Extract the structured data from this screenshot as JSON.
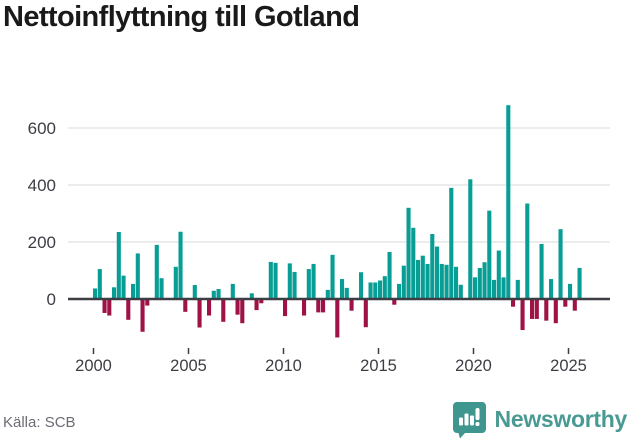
{
  "title": "Nettoinflyttning till Gotland",
  "source": "Källa: SCB",
  "brand": {
    "name": "Newsworthy",
    "icon": "newsworthy-bar-chart-bubble-icon",
    "color": "#4a9a94"
  },
  "chart_data": {
    "type": "bar",
    "title": "Nettoinflyttning till Gotland",
    "frequency": "quarterly",
    "x_start": "2000 Q1",
    "x_end": "2025 Q3",
    "x_tick_labels": [
      "2000",
      "2005",
      "2010",
      "2015",
      "2020",
      "2025"
    ],
    "y_tick_labels": [
      "600",
      "400",
      "200",
      "0"
    ],
    "y_ticks": [
      600,
      400,
      200,
      0
    ],
    "ylim": [
      -150,
      700
    ],
    "grid": true,
    "legend": false,
    "values_by_year": {
      "2000": [
        37,
        105,
        -49,
        -58
      ],
      "2001": [
        41,
        235,
        82,
        -73
      ],
      "2002": [
        53,
        160,
        -115,
        -23
      ],
      "2003": [
        0,
        190,
        73,
        0
      ],
      "2004": [
        0,
        113,
        236,
        -45
      ],
      "2005": [
        0,
        49,
        -100,
        0
      ],
      "2006": [
        -58,
        29,
        35,
        -80
      ],
      "2007": [
        0,
        53,
        -55,
        -85
      ],
      "2008": [
        0,
        20,
        -39,
        -15
      ],
      "2009": [
        0,
        130,
        127,
        0
      ],
      "2010": [
        -60,
        125,
        95,
        0
      ],
      "2011": [
        -58,
        105,
        123,
        -47
      ],
      "2012": [
        -47,
        32,
        155,
        -135
      ],
      "2013": [
        70,
        39,
        -41,
        0
      ],
      "2014": [
        94,
        -99,
        58,
        58
      ],
      "2015": [
        65,
        80,
        165,
        -20
      ],
      "2016": [
        53,
        117,
        320,
        250
      ],
      "2017": [
        137,
        152,
        123,
        228
      ],
      "2018": [
        184,
        123,
        120,
        390
      ],
      "2019": [
        113,
        50,
        0,
        420
      ],
      "2020": [
        76,
        109,
        129,
        310
      ],
      "2021": [
        67,
        170,
        76,
        680
      ],
      "2022": [
        -27,
        67,
        -109,
        335
      ],
      "2023": [
        -70,
        -70,
        193,
        -76
      ],
      "2024": [
        70,
        -85,
        245,
        -27
      ],
      "2025": [
        53,
        -41,
        109
      ]
    },
    "colors": {
      "positive": "#089e96",
      "negative": "#9e1246",
      "axis": "#3d3d44",
      "grid": "#e6e6e6",
      "tick_text": "#3d3d44",
      "title_text": "#1a1a1a",
      "source_text": "#6c6c75"
    }
  }
}
